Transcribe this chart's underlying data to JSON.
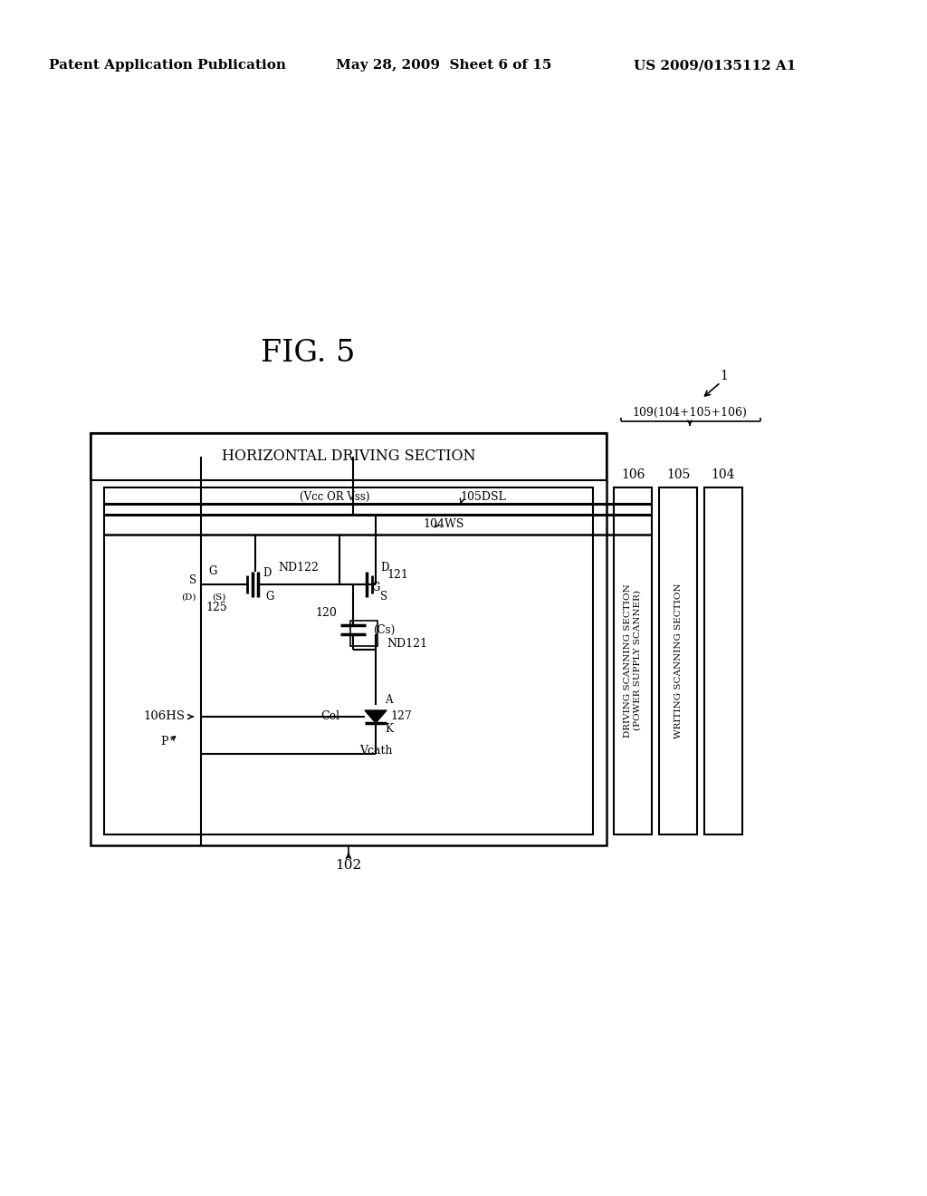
{
  "bg_color": "#ffffff",
  "header_left": "Patent Application Publication",
  "header_mid": "May 28, 2009  Sheet 6 of 15",
  "header_right": "US 2009/0135112 A1",
  "fig_title": "FIG. 5",
  "label_1": "1",
  "label_102": "102",
  "label_104": "104",
  "label_105": "105",
  "label_106b": "106",
  "label_109": "109(104+105+106)",
  "label_104ws": "104WS",
  "label_105dsl": "105DSL",
  "label_vcc": "(Vcc OR Vss)",
  "label_106hs": "106HS",
  "label_nd122": "ND122",
  "label_nd121": "ND121",
  "label_125": "125",
  "label_120": "120",
  "label_cs": "(Cs)",
  "label_121": "121",
  "label_127": "127",
  "label_cel": "Cel",
  "label_vcath": "Vcath",
  "label_p": "P",
  "label_a": "A",
  "label_k": "K",
  "label_g1": "G",
  "label_s1": "S",
  "label_d1": "D",
  "label_d1b": "(D)",
  "label_s1b": "(S)",
  "label_g2": "G",
  "label_d2": "D",
  "label_s2": "S",
  "horiz_section": "HORIZONTAL DRIVING SECTION",
  "driving_section": "DRIVING SCANNING SECTION\n(POWER SUPPLY SCANNER)",
  "writing_section": "WRITING SCANNING SECTION"
}
